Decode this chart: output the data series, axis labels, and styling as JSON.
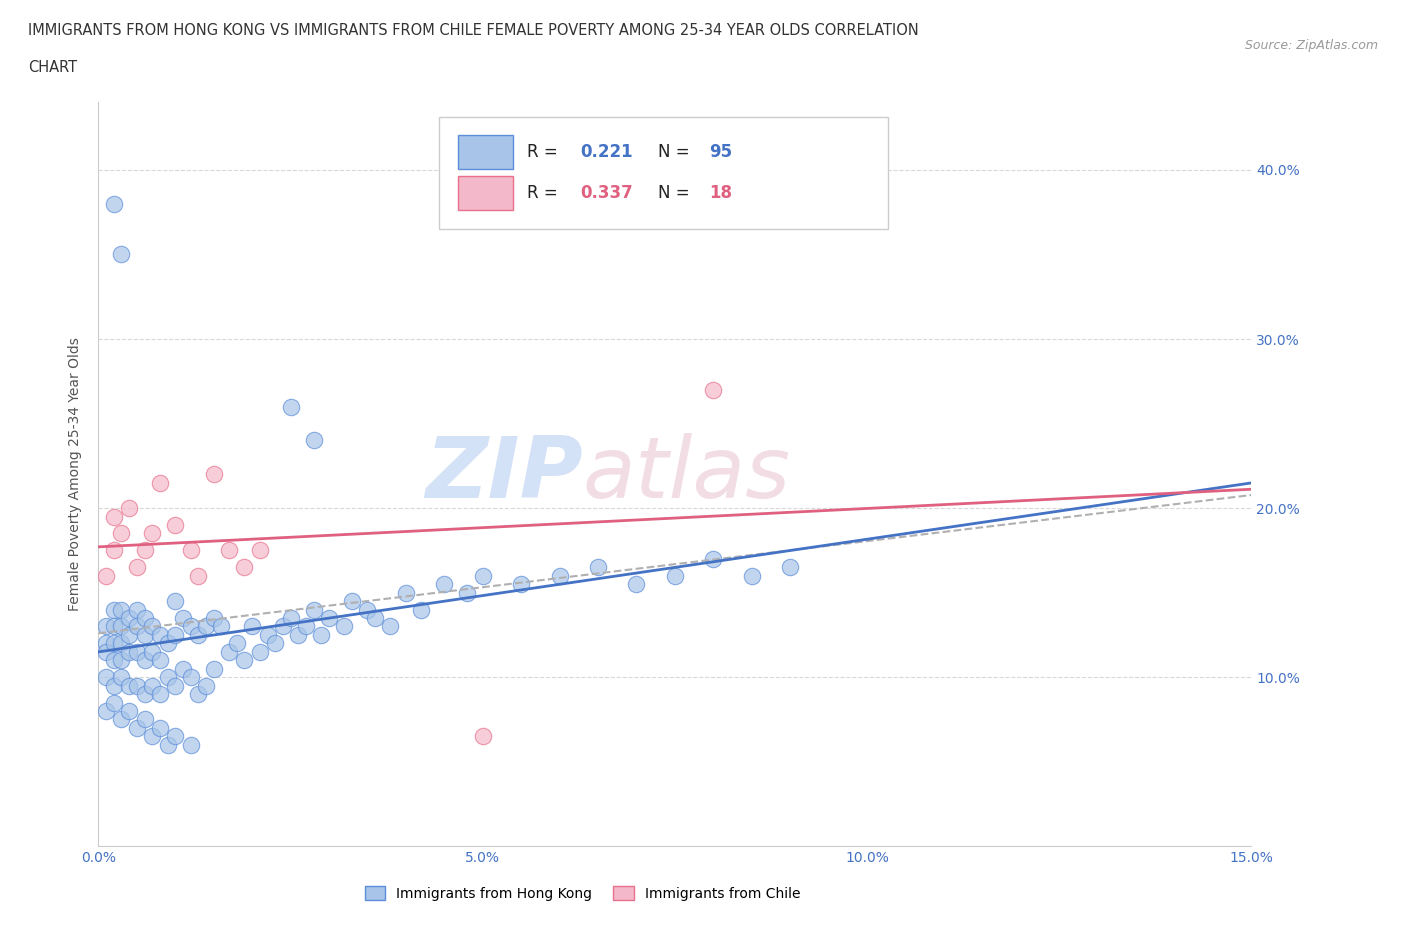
{
  "title_line1": "IMMIGRANTS FROM HONG KONG VS IMMIGRANTS FROM CHILE FEMALE POVERTY AMONG 25-34 YEAR OLDS CORRELATION",
  "title_line2": "CHART",
  "source_text": "Source: ZipAtlas.com",
  "ylabel": "Female Poverty Among 25-34 Year Olds",
  "xlim": [
    0.0,
    0.15
  ],
  "ylim": [
    0.0,
    0.44
  ],
  "xtick_vals": [
    0.0,
    0.05,
    0.1,
    0.15
  ],
  "xtick_labels": [
    "0.0%",
    "5.0%",
    "10.0%",
    "15.0%"
  ],
  "ytick_vals": [
    0.0,
    0.1,
    0.2,
    0.3,
    0.4
  ],
  "ytick_labels": [
    "",
    "10.0%",
    "20.0%",
    "30.0%",
    "40.0%"
  ],
  "hk_color": "#a8c4e8",
  "chile_color": "#f4b8cb",
  "hk_edge_color": "#5b8dd9",
  "chile_edge_color": "#e8708a",
  "hk_line_color": "#4472c4",
  "chile_line_color": "#e06080",
  "grey_dash_color": "#b0b0b0",
  "watermark_color": "#d8e8f8",
  "watermark_color2": "#e8d0d8",
  "legend_hk_R": "0.221",
  "legend_hk_N": "95",
  "legend_chile_R": "0.337",
  "legend_chile_N": "18",
  "legend_R_color": "#111111",
  "legend_hk_val_color": "#4472c4",
  "legend_chile_val_color": "#e06080",
  "hk_x": [
    0.001,
    0.001,
    0.001,
    0.001,
    0.002,
    0.002,
    0.002,
    0.002,
    0.002,
    0.003,
    0.003,
    0.003,
    0.003,
    0.003,
    0.004,
    0.004,
    0.004,
    0.004,
    0.005,
    0.005,
    0.005,
    0.005,
    0.006,
    0.006,
    0.006,
    0.006,
    0.007,
    0.007,
    0.007,
    0.008,
    0.008,
    0.008,
    0.009,
    0.009,
    0.01,
    0.01,
    0.01,
    0.011,
    0.011,
    0.012,
    0.012,
    0.013,
    0.013,
    0.014,
    0.014,
    0.015,
    0.015,
    0.016,
    0.017,
    0.018,
    0.019,
    0.02,
    0.021,
    0.022,
    0.023,
    0.024,
    0.025,
    0.026,
    0.027,
    0.028,
    0.029,
    0.03,
    0.032,
    0.033,
    0.035,
    0.036,
    0.038,
    0.04,
    0.042,
    0.045,
    0.048,
    0.05,
    0.055,
    0.06,
    0.065,
    0.07,
    0.075,
    0.08,
    0.085,
    0.09,
    0.002,
    0.003,
    0.025,
    0.028,
    0.001,
    0.002,
    0.003,
    0.004,
    0.005,
    0.006,
    0.007,
    0.008,
    0.009,
    0.01,
    0.012
  ],
  "hk_y": [
    0.13,
    0.12,
    0.115,
    0.1,
    0.14,
    0.13,
    0.12,
    0.11,
    0.095,
    0.14,
    0.13,
    0.12,
    0.11,
    0.1,
    0.135,
    0.125,
    0.115,
    0.095,
    0.14,
    0.13,
    0.115,
    0.095,
    0.135,
    0.125,
    0.11,
    0.09,
    0.13,
    0.115,
    0.095,
    0.125,
    0.11,
    0.09,
    0.12,
    0.1,
    0.145,
    0.125,
    0.095,
    0.135,
    0.105,
    0.13,
    0.1,
    0.125,
    0.09,
    0.13,
    0.095,
    0.135,
    0.105,
    0.13,
    0.115,
    0.12,
    0.11,
    0.13,
    0.115,
    0.125,
    0.12,
    0.13,
    0.135,
    0.125,
    0.13,
    0.14,
    0.125,
    0.135,
    0.13,
    0.145,
    0.14,
    0.135,
    0.13,
    0.15,
    0.14,
    0.155,
    0.15,
    0.16,
    0.155,
    0.16,
    0.165,
    0.155,
    0.16,
    0.17,
    0.16,
    0.165,
    0.38,
    0.35,
    0.26,
    0.24,
    0.08,
    0.085,
    0.075,
    0.08,
    0.07,
    0.075,
    0.065,
    0.07,
    0.06,
    0.065,
    0.06
  ],
  "chile_x": [
    0.001,
    0.002,
    0.002,
    0.003,
    0.004,
    0.005,
    0.006,
    0.007,
    0.008,
    0.01,
    0.012,
    0.013,
    0.015,
    0.017,
    0.019,
    0.021,
    0.05,
    0.08
  ],
  "chile_y": [
    0.16,
    0.175,
    0.195,
    0.185,
    0.2,
    0.165,
    0.175,
    0.185,
    0.215,
    0.19,
    0.175,
    0.16,
    0.22,
    0.175,
    0.165,
    0.175,
    0.065,
    0.27
  ]
}
